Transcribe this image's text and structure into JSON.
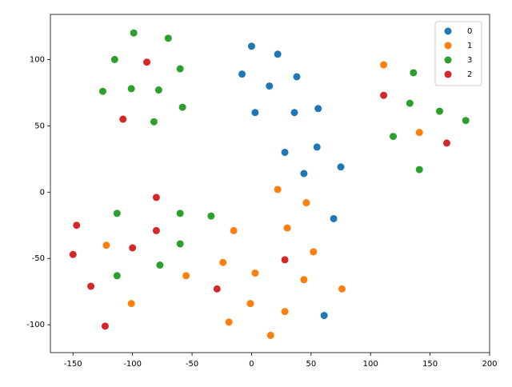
{
  "chart_data": {
    "type": "scatter",
    "xlim": [
      -169,
      200
    ],
    "ylim": [
      -121,
      134
    ],
    "xticks": [
      -150,
      -100,
      -50,
      0,
      50,
      100,
      150,
      200
    ],
    "yticks": [
      -100,
      -50,
      0,
      50,
      100
    ],
    "legend": "upper right",
    "series": [
      {
        "name": "0",
        "color": "#1f77b4",
        "x": [
          0,
          22,
          -8,
          15,
          38,
          56,
          3,
          36,
          28,
          55,
          44,
          75,
          69,
          61
        ],
        "values": [
          110,
          104,
          89,
          80,
          87,
          63,
          60,
          60,
          30,
          34,
          14,
          19,
          -20,
          -93
        ]
      },
      {
        "name": "1",
        "color": "#ff7f0e",
        "x": [
          111,
          141,
          22,
          46,
          -15,
          30,
          -122,
          52,
          -24,
          -55,
          3,
          44,
          76,
          -101,
          -1,
          -19,
          28,
          16
        ],
        "values": [
          96,
          45,
          2,
          -8,
          -29,
          -27,
          -40,
          -45,
          -53,
          -63,
          -61,
          -66,
          -73,
          -84,
          -84,
          -98,
          -90,
          -108
        ]
      },
      {
        "name": "3",
        "color": "#2ca02c",
        "x": [
          -99,
          -70,
          -115,
          -60,
          -101,
          -78,
          -125,
          -58,
          -82,
          136,
          133,
          158,
          180,
          119,
          141,
          -113,
          -60,
          -34,
          -60,
          -77,
          -113
        ],
        "values": [
          120,
          116,
          100,
          93,
          78,
          77,
          76,
          64,
          53,
          90,
          67,
          61,
          54,
          42,
          17,
          -16,
          -16,
          -18,
          -39,
          -55,
          -63
        ]
      },
      {
        "name": "2",
        "color": "#d62728",
        "x": [
          -88,
          -108,
          111,
          164,
          -80,
          -147,
          -80,
          -100,
          -150,
          28,
          -135,
          -29,
          -123
        ],
        "values": [
          98,
          55,
          73,
          37,
          -4,
          -25,
          -29,
          -42,
          -47,
          -51,
          -71,
          -73,
          -101
        ]
      }
    ]
  }
}
